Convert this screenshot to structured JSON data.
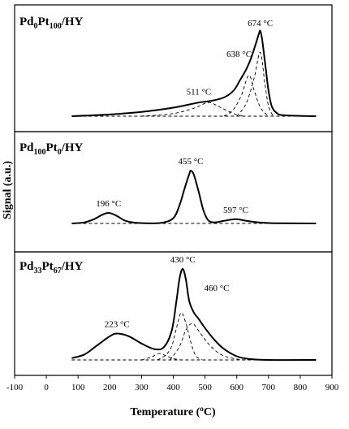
{
  "chart_data": {
    "type": "line",
    "xlabel": "Temperature (°C)",
    "xlabel_main": "Temperature (",
    "xlabel_unit": "C)",
    "ylabel": "Signal (a.u.)",
    "xlim": [
      -100,
      900
    ],
    "xticks": [
      -100,
      0,
      100,
      200,
      300,
      400,
      500,
      600,
      700,
      800,
      900
    ],
    "panels": [
      {
        "title": {
          "base": "Pd",
          "s1": "0",
          "mid": "Pt",
          "s2": "100",
          "tail": "/HY"
        },
        "peaks": [
          {
            "label": "511 °C",
            "x": 511
          },
          {
            "label": "638 °C",
            "x": 638
          },
          {
            "label": "674 °C",
            "x": 674
          }
        ],
        "signal": [
          [
            80,
            0
          ],
          [
            200,
            0.02
          ],
          [
            300,
            0.05
          ],
          [
            400,
            0.1
          ],
          [
            480,
            0.16
          ],
          [
            520,
            0.18
          ],
          [
            560,
            0.22
          ],
          [
            590,
            0.3
          ],
          [
            610,
            0.42
          ],
          [
            630,
            0.55
          ],
          [
            645,
            0.68
          ],
          [
            660,
            0.85
          ],
          [
            670,
            0.97
          ],
          [
            674,
            1.0
          ],
          [
            680,
            0.9
          ],
          [
            690,
            0.6
          ],
          [
            700,
            0.3
          ],
          [
            710,
            0.12
          ],
          [
            725,
            0.04
          ],
          [
            750,
            0.01
          ],
          [
            850,
            0
          ]
        ],
        "components": [
          [
            [
              300,
              0
            ],
            [
              400,
              0.03
            ],
            [
              470,
              0.1
            ],
            [
              511,
              0.16
            ],
            [
              550,
              0.1
            ],
            [
              590,
              0.03
            ],
            [
              620,
              0
            ]
          ],
          [
            [
              560,
              0
            ],
            [
              590,
              0.08
            ],
            [
              615,
              0.25
            ],
            [
              638,
              0.48
            ],
            [
              655,
              0.3
            ],
            [
              675,
              0.1
            ],
            [
              700,
              0
            ]
          ],
          [
            [
              600,
              0
            ],
            [
              630,
              0.15
            ],
            [
              655,
              0.45
            ],
            [
              674,
              0.75
            ],
            [
              688,
              0.4
            ],
            [
              700,
              0.12
            ],
            [
              715,
              0
            ]
          ]
        ]
      },
      {
        "title": {
          "base": "Pd",
          "s1": "100",
          "mid": "Pt",
          "s2": "0",
          "tail": "/HY"
        },
        "peaks": [
          {
            "label": "196 °C",
            "x": 196
          },
          {
            "label": "455 °C",
            "x": 455
          },
          {
            "label": "597 °C",
            "x": 597
          }
        ],
        "signal": [
          [
            80,
            0
          ],
          [
            120,
            0.02
          ],
          [
            150,
            0.08
          ],
          [
            175,
            0.16
          ],
          [
            196,
            0.2
          ],
          [
            220,
            0.15
          ],
          [
            250,
            0.05
          ],
          [
            290,
            0.01
          ],
          [
            360,
            0.01
          ],
          [
            400,
            0.1
          ],
          [
            420,
            0.35
          ],
          [
            435,
            0.65
          ],
          [
            450,
            0.93
          ],
          [
            455,
            1.0
          ],
          [
            465,
            0.92
          ],
          [
            480,
            0.6
          ],
          [
            495,
            0.25
          ],
          [
            510,
            0.06
          ],
          [
            530,
            0.02
          ],
          [
            560,
            0.05
          ],
          [
            597,
            0.08
          ],
          [
            630,
            0.05
          ],
          [
            670,
            0.02
          ],
          [
            720,
            0.005
          ],
          [
            850,
            0
          ]
        ],
        "components": []
      },
      {
        "title": {
          "base": "Pd",
          "s1": "33",
          "mid": "Pt",
          "s2": "67",
          "tail": "/HY"
        },
        "peaks": [
          {
            "label": "223 °C",
            "x": 223
          },
          {
            "label": "430 °C",
            "x": 430
          },
          {
            "label": "460 °C",
            "x": 460
          }
        ],
        "signal": [
          [
            80,
            0.02
          ],
          [
            120,
            0.06
          ],
          [
            160,
            0.16
          ],
          [
            200,
            0.26
          ],
          [
            223,
            0.29
          ],
          [
            260,
            0.26
          ],
          [
            300,
            0.18
          ],
          [
            340,
            0.12
          ],
          [
            370,
            0.14
          ],
          [
            395,
            0.32
          ],
          [
            410,
            0.65
          ],
          [
            420,
            0.9
          ],
          [
            430,
            1.0
          ],
          [
            440,
            0.88
          ],
          [
            450,
            0.65
          ],
          [
            465,
            0.52
          ],
          [
            480,
            0.45
          ],
          [
            500,
            0.35
          ],
          [
            530,
            0.22
          ],
          [
            560,
            0.12
          ],
          [
            600,
            0.04
          ],
          [
            640,
            0.01
          ],
          [
            700,
            0
          ],
          [
            850,
            0
          ]
        ],
        "components": [
          [
            [
              300,
              0
            ],
            [
              330,
              0.03
            ],
            [
              355,
              0.07
            ],
            [
              375,
              0.05
            ],
            [
              395,
              0.02
            ],
            [
              420,
              0
            ]
          ],
          [
            [
              350,
              0
            ],
            [
              375,
              0.05
            ],
            [
              395,
              0.15
            ],
            [
              410,
              0.35
            ],
            [
              425,
              0.52
            ],
            [
              440,
              0.4
            ],
            [
              455,
              0.2
            ],
            [
              470,
              0.05
            ],
            [
              490,
              0
            ]
          ],
          [
            [
              390,
              0
            ],
            [
              420,
              0.15
            ],
            [
              440,
              0.33
            ],
            [
              460,
              0.4
            ],
            [
              480,
              0.32
            ],
            [
              510,
              0.18
            ],
            [
              550,
              0.06
            ],
            [
              600,
              0.01
            ],
            [
              640,
              0
            ]
          ]
        ]
      }
    ]
  }
}
